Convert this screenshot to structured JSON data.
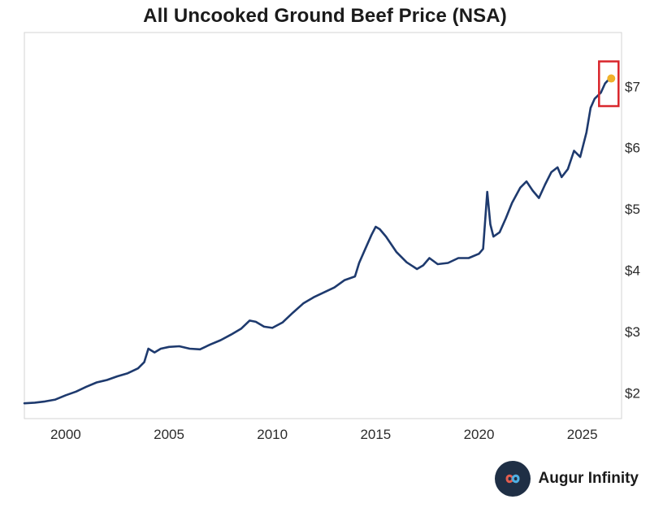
{
  "chart_data": {
    "type": "line",
    "title": "All Uncooked Ground Beef Price (NSA)",
    "xlabel": "",
    "ylabel": "",
    "xlim": [
      1998.0,
      2026.9
    ],
    "ylim": [
      1.58,
      7.88
    ],
    "x_ticks": [
      2000,
      2005,
      2010,
      2015,
      2020,
      2025
    ],
    "y_ticks": [
      2,
      3,
      4,
      5,
      6,
      7
    ],
    "y_tick_labels": [
      "$2",
      "$3",
      "$4",
      "$5",
      "$6",
      "$7"
    ],
    "grid": false,
    "series": [
      {
        "color": "#1e3a6e",
        "x": [
          1998.0,
          1998.5,
          1999.0,
          1999.5,
          2000.0,
          2000.5,
          2001.0,
          2001.5,
          2002.0,
          2002.5,
          2003.0,
          2003.5,
          2003.8,
          2004.0,
          2004.3,
          2004.6,
          2005.0,
          2005.5,
          2006.0,
          2006.5,
          2007.0,
          2007.5,
          2008.0,
          2008.5,
          2008.9,
          2009.2,
          2009.6,
          2010.0,
          2010.5,
          2011.0,
          2011.5,
          2012.0,
          2012.5,
          2013.0,
          2013.5,
          2014.0,
          2014.2,
          2014.5,
          2014.8,
          2015.0,
          2015.2,
          2015.5,
          2016.0,
          2016.5,
          2017.0,
          2017.3,
          2017.6,
          2018.0,
          2018.5,
          2019.0,
          2019.5,
          2020.0,
          2020.2,
          2020.4,
          2020.55,
          2020.7,
          2021.0,
          2021.3,
          2021.6,
          2022.0,
          2022.3,
          2022.6,
          2022.9,
          2023.2,
          2023.5,
          2023.8,
          2024.0,
          2024.3,
          2024.6,
          2024.9,
          2025.2,
          2025.4,
          2025.6,
          2025.9,
          2026.1,
          2026.3
        ],
        "y": [
          1.83,
          1.84,
          1.86,
          1.89,
          1.96,
          2.02,
          2.1,
          2.17,
          2.21,
          2.27,
          2.32,
          2.4,
          2.5,
          2.72,
          2.66,
          2.72,
          2.75,
          2.76,
          2.72,
          2.71,
          2.79,
          2.86,
          2.95,
          3.05,
          3.18,
          3.16,
          3.08,
          3.06,
          3.15,
          3.31,
          3.46,
          3.56,
          3.64,
          3.72,
          3.84,
          3.9,
          4.12,
          4.35,
          4.58,
          4.71,
          4.67,
          4.55,
          4.3,
          4.13,
          4.02,
          4.08,
          4.2,
          4.1,
          4.12,
          4.2,
          4.2,
          4.27,
          4.35,
          5.28,
          4.75,
          4.55,
          4.62,
          4.85,
          5.1,
          5.35,
          5.45,
          5.3,
          5.18,
          5.4,
          5.6,
          5.68,
          5.52,
          5.65,
          5.95,
          5.85,
          6.25,
          6.65,
          6.8,
          6.9,
          7.05,
          7.12
        ]
      }
    ],
    "highlight_point": {
      "x": 2026.4,
      "y": 7.13,
      "color": "#f0b12a",
      "box_color": "#d9252b"
    }
  },
  "brand": {
    "name": "Augur Infinity",
    "logo_icon": "infinity-icon"
  }
}
